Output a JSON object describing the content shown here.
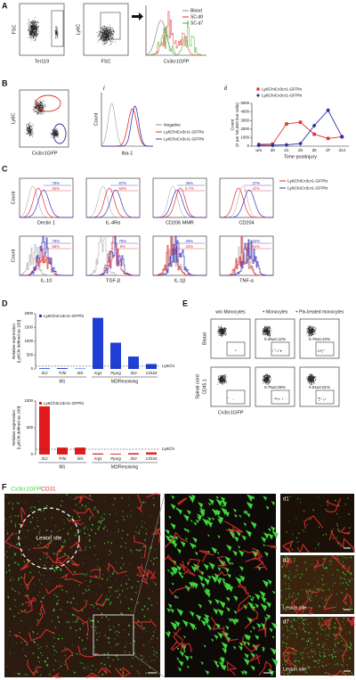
{
  "panel_letters": [
    "A",
    "B",
    "C",
    "D",
    "E",
    "F"
  ],
  "panel_a": {
    "plot1": {
      "x_label": "Ter119",
      "y_label": "FSC"
    },
    "plot2": {
      "x_label": "FSC",
      "y_label": "Ly6C"
    },
    "histogram": {
      "x_label": "Cx3cr1GFP",
      "legend": [
        {
          "name": "Blood",
          "color": "#8c8c8c"
        },
        {
          "name": "SC-d0",
          "color": "#e0302e"
        },
        {
          "name": "SC-d7",
          "color": "#4caf2a"
        }
      ]
    }
  },
  "panel_b": {
    "dot_plot": {
      "x_label": "Cx3cr1GFP",
      "y_label": "Ly6C"
    },
    "i": {
      "marker": "i",
      "x_label": "Iba-1",
      "y_label": "Count",
      "legend": [
        {
          "name": "Negative",
          "color": "#9a9a9a"
        },
        {
          "name": "Ly6ChiCx3cr1-GFPlo",
          "color": "#e0302e"
        },
        {
          "name": "Ly6CloCx3cr1-GFPhi",
          "color": "#3b34b8"
        }
      ]
    },
    "ii": {
      "marker": "ii"
    }
  },
  "panel_c": {
    "histograms": [
      {
        "label": "Dectin 1",
        "percentages": [
          "76%",
          "52%"
        ]
      },
      {
        "label": "IL-4Rα",
        "percentages": [
          "87%",
          "62%"
        ]
      },
      {
        "label": "CD206 MMR",
        "percentages": [
          "49%",
          "0.7%"
        ]
      },
      {
        "label": "CD204",
        "percentages": [
          "37%",
          "47%"
        ]
      },
      {
        "label": "IL-10",
        "percentages": [
          "75%",
          "55%"
        ]
      },
      {
        "label": "TGF-β",
        "percentages": [
          "78%",
          "8%"
        ]
      },
      {
        "label": "IL-1β",
        "percentages": [
          "29%",
          "23%"
        ]
      },
      {
        "label": "TNF-α",
        "percentages": [
          "22%",
          "61%"
        ]
      }
    ]
  },
  "panel_d": {
    "group_labels": [
      "M1",
      "M2/Resolving"
    ],
    "reference_label": "Ly6Chi",
    "y_label_lines": [
      "Relative expression",
      "[Ly6Chi defined as 100]"
    ]
  },
  "panel_e": {
    "columns": [
      "w/o Monocytes",
      "+ Monocytes",
      "+ Ptx-treated monocytes"
    ],
    "rows": [
      "Blood",
      "Spinal cord"
    ],
    "y_label": "CD45.1",
    "x_label": "Cx3cr1GFP",
    "percentages": [
      [
        null,
        "0.39±0.12%",
        "0.79±0.22%"
      ],
      [
        null,
        "0.79±0.05%",
        "0.04±0.01%"
      ]
    ]
  },
  "panel_f": {
    "header": [
      {
        "text": "Cx3cr1GFP",
        "color": "#3fd43a"
      },
      {
        "text": "CD31",
        "color": "#e0302e"
      }
    ],
    "lesion_label": "Lesion site",
    "timepoints": [
      "d1",
      "d3",
      "d7"
    ]
  },
  "chart_data": [
    {
      "type": "line",
      "x_label": "Time postinjury",
      "y_label_lines": [
        "Count",
        "(# per 50,000 live cells)"
      ],
      "categories": [
        "w/o",
        "d0",
        "d1",
        "d3",
        "d5",
        "d7",
        "d14"
      ],
      "series": [
        {
          "name": "Ly6ChiCx3cr1-GFPlo",
          "color": "#e0302e",
          "marker": "square",
          "values": [
            200,
            250,
            2600,
            2800,
            1400,
            900,
            1100
          ]
        },
        {
          "name": "Ly6CloCx3cr1-GFPhi",
          "color": "#2a2f9e",
          "marker": "diamond",
          "values": [
            100,
            100,
            150,
            300,
            2400,
            4200,
            1100
          ]
        }
      ],
      "ylim": [
        0,
        5000
      ],
      "yticks": [
        0,
        1000,
        2000,
        3000,
        4000,
        5000
      ]
    },
    {
      "type": "bar",
      "categories": [
        "Il12",
        "Tnfα",
        "Il1b",
        "Arg1",
        "Pparg",
        "Il10",
        "Cd163"
      ],
      "series": [
        {
          "name": "Ly6CloCx3cr1-GFPhi",
          "color": "#1f3fd6",
          "values": [
            25,
            30,
            15,
            1850,
            950,
            450,
            180
          ]
        }
      ],
      "reference": 100,
      "ylim": [
        0,
        2000
      ],
      "yticks": [
        0,
        500,
        1000,
        1500,
        2000
      ]
    },
    {
      "type": "bar",
      "categories": [
        "Il12",
        "Tnfα",
        "Il1b",
        "Arg1",
        "Pparg",
        "Il10",
        "Cd163"
      ],
      "series": [
        {
          "name": "Ly6ChiCx3cr1-GFPlo",
          "color": "#e31a1c",
          "values": [
            900,
            130,
            130,
            20,
            15,
            25,
            40
          ]
        }
      ],
      "reference": 100,
      "ylim": [
        0,
        1000
      ],
      "yticks": [
        0,
        500,
        1000
      ]
    }
  ]
}
